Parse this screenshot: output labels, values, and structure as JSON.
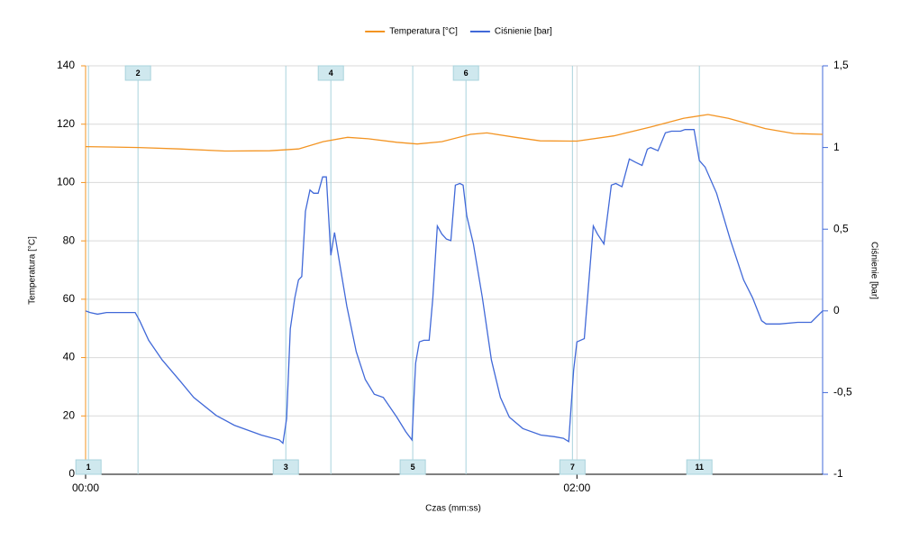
{
  "chart_data": {
    "type": "line",
    "x_label": "Czas (mm:ss)",
    "y_label": "Temperatura [°C]",
    "y2_label": "Ciśnienie [bar]",
    "xlim": [
      0,
      180
    ],
    "xticks": [
      {
        "value": 0,
        "label": "00:00"
      },
      {
        "value": 120,
        "label": "02:00"
      }
    ],
    "ylim": [
      0,
      140
    ],
    "yticks": [
      0,
      20,
      40,
      60,
      80,
      100,
      120,
      140
    ],
    "y2lim": [
      -1,
      1.5
    ],
    "y2ticks": [
      -1,
      {
        "value": -0.5,
        "label": "-0,5"
      },
      0,
      {
        "value": 0.5,
        "label": "0,5"
      },
      1,
      {
        "value": 1.5,
        "label": "1,5"
      }
    ],
    "grid": true,
    "legend": "top",
    "series": [
      {
        "name": "Temperatura [°C]",
        "color": "#f39422",
        "axis": "y",
        "x": [
          0,
          13,
          23,
          34,
          45,
          52,
          58,
          64,
          69,
          76,
          81,
          87,
          94,
          98,
          105,
          111,
          120,
          129,
          138,
          146,
          152,
          157,
          166,
          173,
          180
        ],
        "values": [
          112.3,
          112,
          111.5,
          110.8,
          110.9,
          111.5,
          114,
          115.5,
          115,
          113.8,
          113.2,
          114,
          116.5,
          117,
          115.5,
          114.3,
          114.2,
          116,
          119,
          122,
          123.3,
          122,
          118.5,
          116.8,
          116.5
        ]
      },
      {
        "name": "Ciśnienie [bar]",
        "color": "#4169d8",
        "axis": "y2",
        "x": [
          0,
          1.1,
          2.9,
          5.1,
          12.1,
          13.2,
          15.4,
          18.7,
          23.1,
          26.4,
          31.9,
          36.3,
          42.9,
          47.3,
          48.2,
          49.1,
          50,
          51.1,
          52,
          52.8,
          53.7,
          54.8,
          55.7,
          56.8,
          57.9,
          58.8,
          59.9,
          60.8,
          61.6,
          63.8,
          66.1,
          68.3,
          70.5,
          72.7,
          76,
          78.2,
          79.7,
          80.6,
          81.5,
          82.6,
          83.9,
          84.8,
          85.9,
          87,
          88.1,
          89.2,
          90.3,
          91.4,
          92.2,
          93.1,
          94.7,
          96.9,
          99.1,
          101.3,
          103.5,
          106.8,
          111.2,
          114.5,
          116.7,
          118,
          119.2,
          120,
          121.8,
          122.6,
          124,
          125,
          126.6,
          128.4,
          129.5,
          131,
          132.8,
          134.3,
          135.9,
          137.2,
          138,
          139.8,
          141.6,
          143.1,
          145.3,
          146.4,
          148.6,
          149.9,
          151.3,
          154.1,
          157.4,
          160.7,
          162.9,
          165.1,
          166.2,
          169.5,
          173.9,
          177.2,
          180
        ],
        "values": [
          0,
          -0.01,
          -0.02,
          -0.01,
          -0.01,
          -0.06,
          -0.18,
          -0.3,
          -0.43,
          -0.53,
          -0.64,
          -0.7,
          -0.76,
          -0.79,
          -0.81,
          -0.66,
          -0.11,
          0.08,
          0.19,
          0.21,
          0.61,
          0.74,
          0.72,
          0.72,
          0.82,
          0.82,
          0.34,
          0.48,
          0.36,
          0.03,
          -0.25,
          -0.42,
          -0.51,
          -0.53,
          -0.65,
          -0.74,
          -0.79,
          -0.32,
          -0.19,
          -0.18,
          -0.18,
          0.08,
          0.52,
          0.47,
          0.44,
          0.43,
          0.77,
          0.78,
          0.77,
          0.58,
          0.41,
          0.08,
          -0.3,
          -0.53,
          -0.65,
          -0.72,
          -0.76,
          -0.77,
          -0.78,
          -0.8,
          -0.36,
          -0.19,
          -0.17,
          0.08,
          0.52,
          0.47,
          0.41,
          0.77,
          0.78,
          0.76,
          0.93,
          0.91,
          0.89,
          0.99,
          1,
          0.98,
          1.09,
          1.1,
          1.1,
          1.11,
          1.11,
          0.92,
          0.88,
          0.72,
          0.44,
          0.19,
          0.08,
          -0.06,
          -0.08,
          -0.08,
          -0.07,
          -0.07,
          0
        ]
      }
    ],
    "markers": [
      {
        "label": "1",
        "x": 0.7,
        "position": "bottom"
      },
      {
        "label": "2",
        "x": 12.8,
        "position": "top"
      },
      {
        "label": "3",
        "x": 48.9,
        "position": "bottom"
      },
      {
        "label": "4",
        "x": 59.9,
        "position": "top"
      },
      {
        "label": "5",
        "x": 79.9,
        "position": "bottom"
      },
      {
        "label": "6",
        "x": 92.9,
        "position": "top"
      },
      {
        "label": "7",
        "x": 118.9,
        "position": "bottom"
      },
      {
        "label": "11",
        "x": 149.9,
        "position": "bottom"
      }
    ]
  }
}
